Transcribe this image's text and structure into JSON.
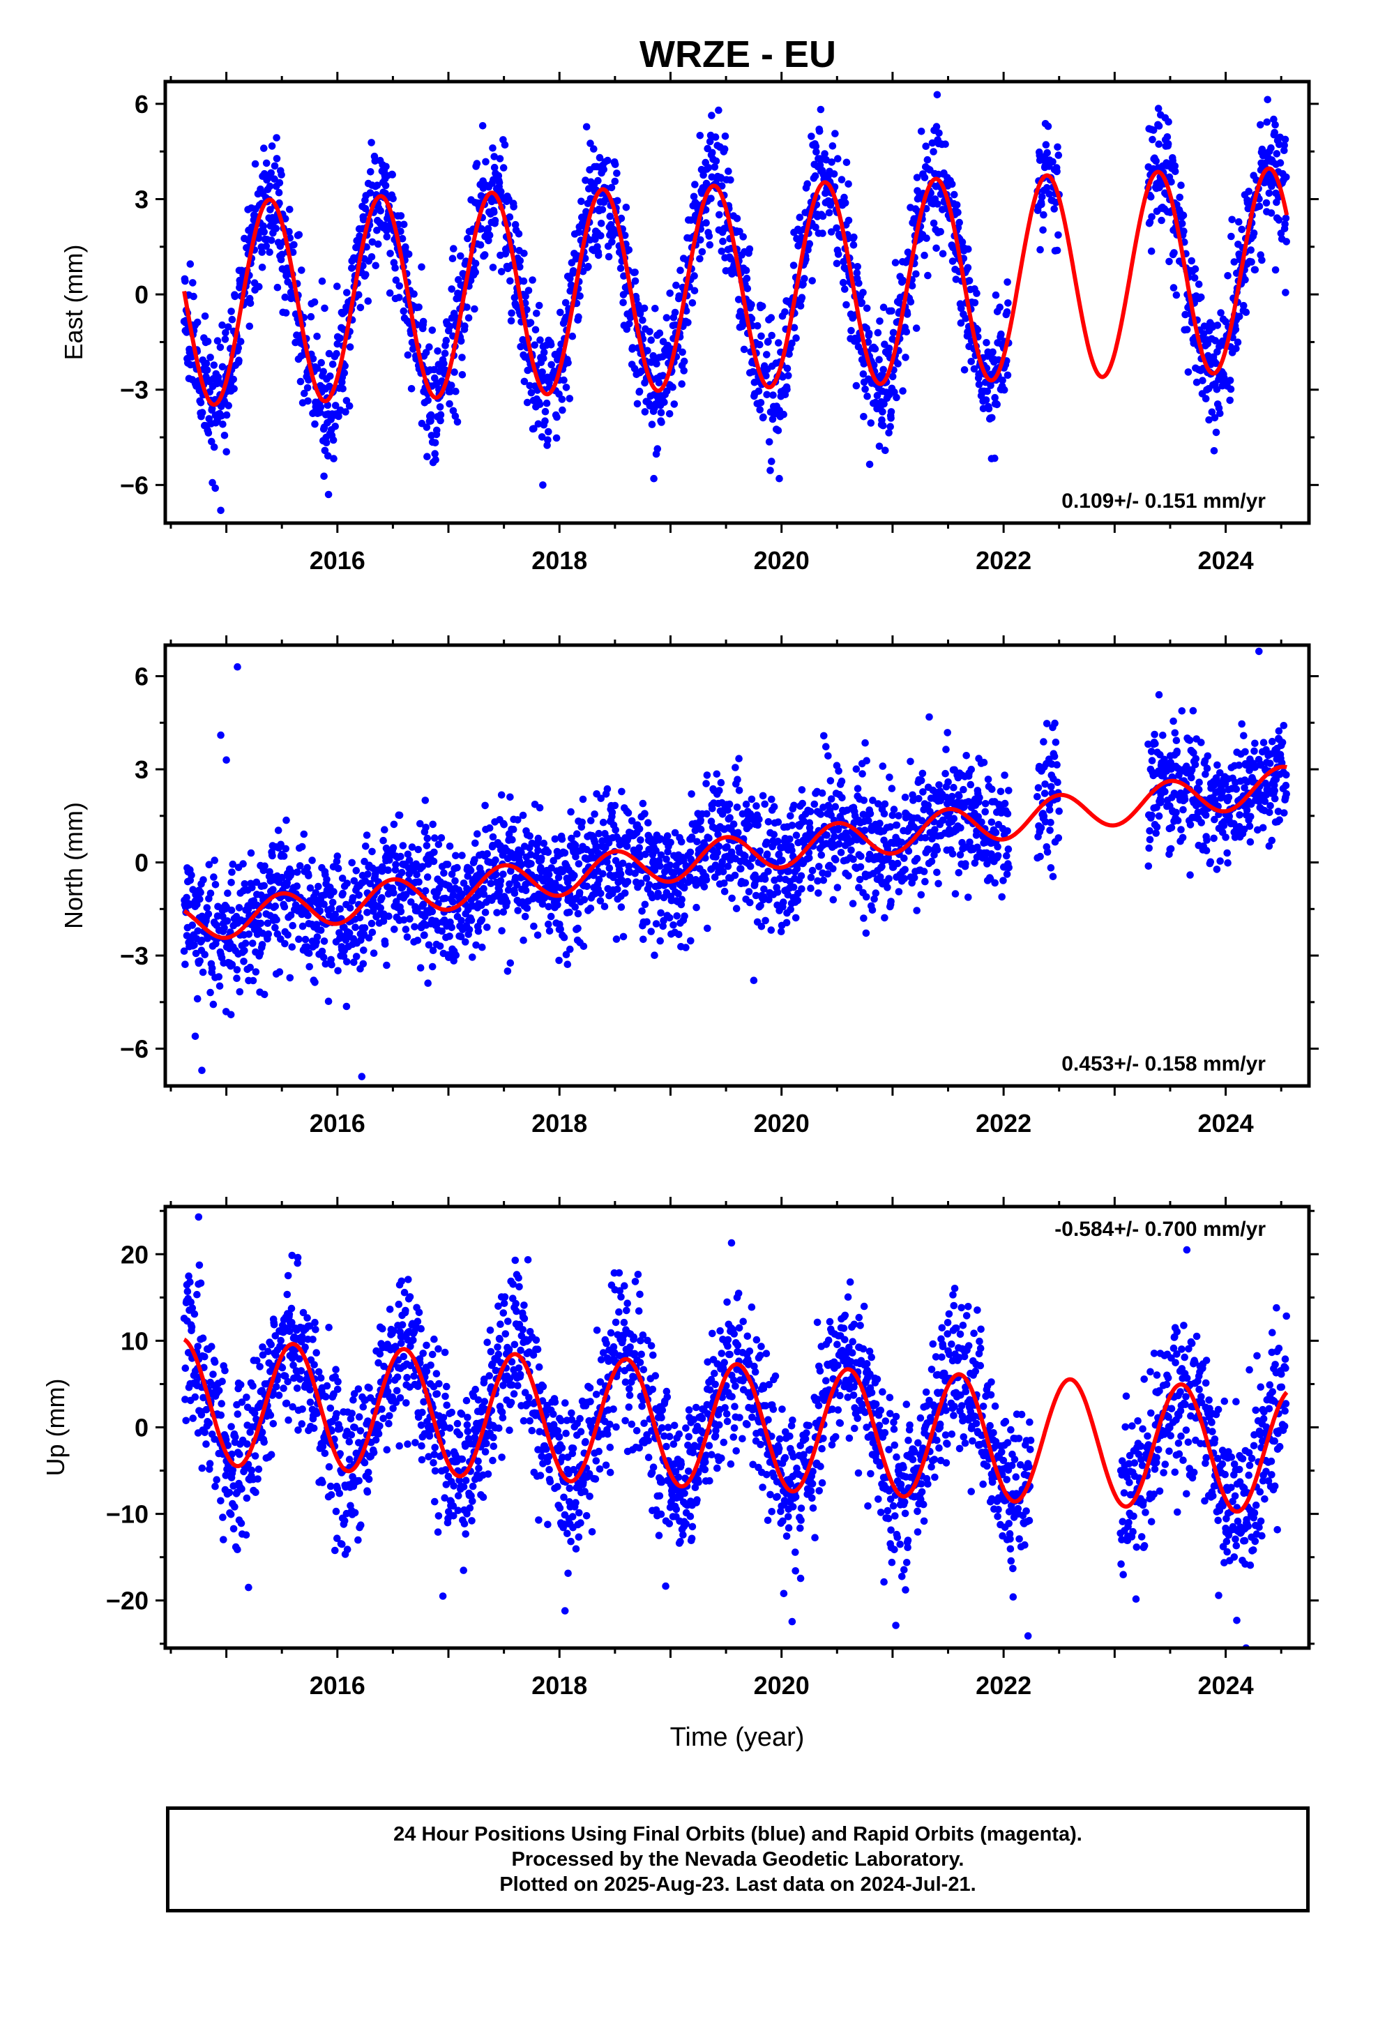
{
  "title": "WRZE - EU",
  "footer": {
    "line1": "24 Hour Positions Using Final Orbits (blue) and Rapid Orbits (magenta).",
    "line2": "Processed by the Nevada Geodetic Laboratory.",
    "line3": "Plotted on 2025-Aug-23. Last data on 2024-Jul-21."
  },
  "colors": {
    "points": "#0000ff",
    "model": "#ff0000",
    "frame": "#000000"
  },
  "chart_data": [
    {
      "type": "scatter",
      "title": "WRZE - EU",
      "ylabel": "East (mm)",
      "xlabel": "",
      "xlim": [
        2014.45,
        2024.75
      ],
      "ylim": [
        -7.2,
        6.7
      ],
      "yticks": [
        6,
        3,
        0,
        -3,
        -6
      ],
      "xticks": [
        2016,
        2018,
        2020,
        2022,
        2024
      ],
      "rate_label": "0.109+/- 0.151 mm/yr",
      "rate_position": "bottom-right",
      "model": {
        "offset": -0.3,
        "trend_mm_per_yr": 0.109,
        "annual_amplitude": 3.2,
        "peak_fraction": 0.39,
        "start_fraction": -0.5,
        "seed": 11,
        "noise": 1.0
      },
      "data_span": [
        2014.62,
        2024.55
      ],
      "gaps": [
        [
          2022.05,
          2022.3
        ],
        [
          2022.5,
          2023.3
        ]
      ],
      "outliers": [
        [
          2014.9,
          -6.1
        ],
        [
          2014.95,
          -6.8
        ],
        [
          2015.92,
          -6.3
        ],
        [
          2017.85,
          -6.0
        ],
        [
          2018.85,
          -5.8
        ],
        [
          2019.98,
          -5.8
        ]
      ],
      "series": [
        {
          "name": "",
          "kind": "points",
          "color": "#0000ff"
        },
        {
          "name": "",
          "kind": "model",
          "color": "#ff0000"
        }
      ]
    },
    {
      "type": "scatter",
      "ylabel": "North (mm)",
      "xlabel": "",
      "xlim": [
        2014.45,
        2024.75
      ],
      "ylim": [
        -7.2,
        7.0
      ],
      "yticks": [
        6,
        3,
        0,
        -3,
        -6
      ],
      "xticks": [
        2016,
        2018,
        2020,
        2022,
        2024
      ],
      "rate_label": "0.453+/- 0.158 mm/yr",
      "rate_position": "bottom-right",
      "model": {
        "offset": -2.0,
        "trend_mm_per_yr": 0.453,
        "annual_amplitude": 0.6,
        "peak_fraction": 0.5,
        "start_fraction": 0.0,
        "seed": 23,
        "noise": 1.0
      },
      "data_span": [
        2014.62,
        2024.55
      ],
      "gaps": [
        [
          2022.05,
          2022.3
        ],
        [
          2022.5,
          2023.3
        ]
      ],
      "outliers": [
        [
          2015.1,
          6.3
        ],
        [
          2014.95,
          4.1
        ],
        [
          2015.0,
          3.3
        ],
        [
          2014.72,
          -5.6
        ],
        [
          2014.78,
          -6.7
        ],
        [
          2016.22,
          -6.9
        ],
        [
          2019.75,
          -3.8
        ],
        [
          2024.3,
          6.8
        ],
        [
          2023.4,
          5.4
        ]
      ],
      "series": [
        {
          "name": "",
          "kind": "points",
          "color": "#0000ff"
        },
        {
          "name": "",
          "kind": "model",
          "color": "#ff0000"
        }
      ]
    },
    {
      "type": "scatter",
      "ylabel": "Up (mm)",
      "xlabel": "Time (year)",
      "xlim": [
        2014.45,
        2024.75
      ],
      "ylim": [
        -25.5,
        25.5
      ],
      "yticks": [
        20,
        10,
        0,
        -10,
        -20
      ],
      "xticks": [
        2016,
        2018,
        2020,
        2022,
        2024
      ],
      "rate_label": "-0.584+/- 0.700 mm/yr",
      "rate_position": "top-right",
      "model": {
        "offset": 3.0,
        "trend_mm_per_yr": -0.584,
        "annual_amplitude": 7.2,
        "peak_fraction": 0.6,
        "start_fraction": 0.6,
        "seed": 37,
        "noise": 4.5
      },
      "data_span": [
        2014.62,
        2024.55
      ],
      "gaps": [
        [
          2022.25,
          2023.05
        ]
      ],
      "outliers": [
        [
          2014.75,
          24.3
        ],
        [
          2015.2,
          -18.5
        ],
        [
          2016.95,
          -19.5
        ],
        [
          2018.05,
          -21.2
        ],
        [
          2020.02,
          -19.2
        ],
        [
          2022.22,
          -24.1
        ],
        [
          2024.1,
          -22.3
        ],
        [
          2019.55,
          21.3
        ],
        [
          2023.65,
          20.5
        ]
      ],
      "series": [
        {
          "name": "",
          "kind": "points",
          "color": "#0000ff"
        },
        {
          "name": "",
          "kind": "model",
          "color": "#ff0000"
        }
      ]
    }
  ]
}
